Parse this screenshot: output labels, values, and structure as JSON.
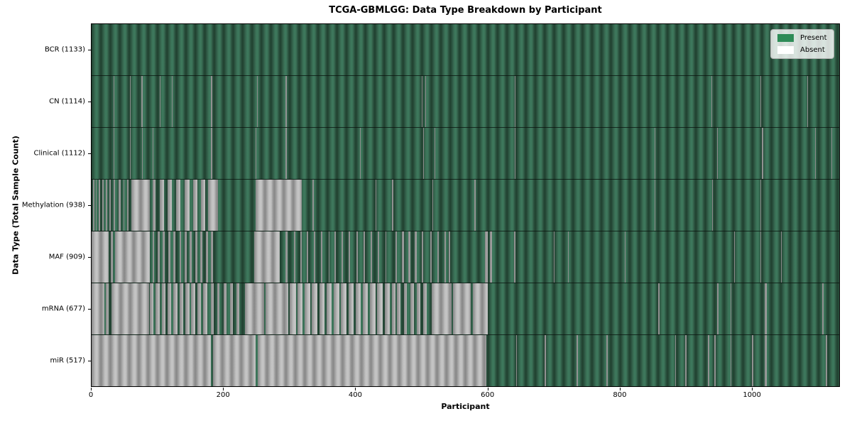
{
  "chart_data": {
    "type": "heatmap",
    "title": "TCGA-GBMLGG: Data Type Breakdown by Participant",
    "xlabel": "Participant",
    "ylabel": "Data Type (Total Sample Count)",
    "n_participants": 1133,
    "xlim": [
      0,
      1133
    ],
    "x_ticks": [
      0,
      200,
      400,
      600,
      800,
      1000
    ],
    "grid": false,
    "legend": {
      "position": "upper right",
      "entries": [
        {
          "label": "Present",
          "color": "#2e8b57"
        },
        {
          "label": "Absent",
          "color": "#ffffff"
        }
      ]
    },
    "rows": [
      {
        "data_type": "BCR",
        "label": "BCR (1133)",
        "present_count": 1133,
        "absent_ranges": []
      },
      {
        "data_type": "CN",
        "label": "CN (1114)",
        "present_count": 1114,
        "absent_ranges": [
          [
            33,
            34
          ],
          [
            58,
            59
          ],
          [
            75,
            77
          ],
          [
            103,
            104
          ],
          [
            122,
            123
          ],
          [
            181,
            183
          ],
          [
            251,
            252
          ],
          [
            294,
            296
          ],
          [
            500,
            501
          ],
          [
            506,
            507
          ],
          [
            516,
            517
          ],
          [
            641,
            642
          ],
          [
            870,
            871
          ],
          [
            939,
            940
          ],
          [
            1014,
            1015
          ],
          [
            1085,
            1086
          ]
        ]
      },
      {
        "data_type": "Clinical",
        "label": "Clinical (1112)",
        "present_count": 1112,
        "absent_ranges": [
          [
            33,
            34
          ],
          [
            58,
            59
          ],
          [
            76,
            77
          ],
          [
            93,
            94
          ],
          [
            181,
            183
          ],
          [
            249,
            250
          ],
          [
            294,
            296
          ],
          [
            407,
            408
          ],
          [
            446,
            447
          ],
          [
            503,
            504
          ],
          [
            520,
            521
          ],
          [
            641,
            642
          ],
          [
            853,
            854
          ],
          [
            870,
            871
          ],
          [
            948,
            949
          ],
          [
            1016,
            1018
          ],
          [
            1096,
            1097
          ],
          [
            1121,
            1122
          ]
        ]
      },
      {
        "data_type": "Methylation",
        "label": "Methylation (938)",
        "present_count": 938,
        "absent_ranges": [
          [
            2,
            4
          ],
          [
            6,
            8
          ],
          [
            11,
            13
          ],
          [
            16,
            18
          ],
          [
            22,
            24
          ],
          [
            27,
            29
          ],
          [
            33,
            36
          ],
          [
            41,
            44
          ],
          [
            48,
            50
          ],
          [
            54,
            56
          ],
          [
            60,
            88
          ],
          [
            92,
            97
          ],
          [
            103,
            110
          ],
          [
            115,
            122
          ],
          [
            128,
            135
          ],
          [
            141,
            148
          ],
          [
            154,
            160
          ],
          [
            166,
            172
          ],
          [
            176,
            192
          ],
          [
            249,
            319
          ],
          [
            335,
            337
          ],
          [
            430,
            432
          ],
          [
            455,
            457
          ],
          [
            516,
            518
          ],
          [
            580,
            582
          ],
          [
            853,
            854
          ],
          [
            940,
            941
          ],
          [
            1014,
            1015
          ]
        ]
      },
      {
        "data_type": "MAF",
        "label": "MAF (909)",
        "present_count": 909,
        "absent_ranges": [
          [
            0,
            26
          ],
          [
            29,
            32
          ],
          [
            35,
            88
          ],
          [
            92,
            95
          ],
          [
            100,
            103
          ],
          [
            108,
            111
          ],
          [
            116,
            119
          ],
          [
            124,
            127
          ],
          [
            133,
            136
          ],
          [
            141,
            144
          ],
          [
            149,
            152
          ],
          [
            157,
            160
          ],
          [
            165,
            168
          ],
          [
            173,
            176
          ],
          [
            181,
            184
          ],
          [
            246,
            285
          ],
          [
            294,
            297
          ],
          [
            307,
            309
          ],
          [
            316,
            318
          ],
          [
            326,
            328
          ],
          [
            337,
            339
          ],
          [
            348,
            350
          ],
          [
            359,
            361
          ],
          [
            368,
            370
          ],
          [
            379,
            381
          ],
          [
            390,
            392
          ],
          [
            401,
            403
          ],
          [
            412,
            414
          ],
          [
            423,
            425
          ],
          [
            434,
            436
          ],
          [
            445,
            447
          ],
          [
            460,
            463
          ],
          [
            470,
            473
          ],
          [
            480,
            483
          ],
          [
            490,
            493
          ],
          [
            500,
            503
          ],
          [
            513,
            515
          ],
          [
            524,
            526
          ],
          [
            535,
            537
          ],
          [
            541,
            543
          ],
          [
            596,
            600
          ],
          [
            604,
            607
          ],
          [
            640,
            642
          ],
          [
            700,
            702
          ],
          [
            722,
            723
          ],
          [
            808,
            809
          ],
          [
            974,
            975
          ],
          [
            1014,
            1015
          ],
          [
            1045,
            1046
          ]
        ]
      },
      {
        "data_type": "mRNA",
        "label": "mRNA (677)",
        "present_count": 677,
        "absent_ranges": [
          [
            0,
            19
          ],
          [
            21,
            26
          ],
          [
            30,
            87
          ],
          [
            88,
            94
          ],
          [
            97,
            103
          ],
          [
            106,
            112
          ],
          [
            115,
            121
          ],
          [
            124,
            130
          ],
          [
            133,
            139
          ],
          [
            142,
            148
          ],
          [
            151,
            157
          ],
          [
            160,
            166
          ],
          [
            169,
            175
          ],
          [
            181,
            185
          ],
          [
            190,
            194
          ],
          [
            200,
            204
          ],
          [
            210,
            214
          ],
          [
            220,
            224
          ],
          [
            232,
            262
          ],
          [
            264,
            298
          ],
          [
            300,
            310
          ],
          [
            312,
            320
          ],
          [
            323,
            331
          ],
          [
            334,
            342
          ],
          [
            345,
            353
          ],
          [
            356,
            364
          ],
          [
            367,
            375
          ],
          [
            378,
            386
          ],
          [
            389,
            397
          ],
          [
            400,
            408
          ],
          [
            411,
            419
          ],
          [
            422,
            430
          ],
          [
            433,
            441
          ],
          [
            444,
            452
          ],
          [
            455,
            460
          ],
          [
            463,
            468
          ],
          [
            473,
            478
          ],
          [
            483,
            488
          ],
          [
            493,
            498
          ],
          [
            503,
            508
          ],
          [
            515,
            545
          ],
          [
            548,
            575
          ],
          [
            578,
            600
          ],
          [
            859,
            861
          ],
          [
            948,
            950
          ],
          [
            968,
            970
          ],
          [
            1020,
            1023
          ],
          [
            1107,
            1109
          ]
        ]
      },
      {
        "data_type": "miR",
        "label": "miR (517)",
        "present_count": 517,
        "absent_ranges": [
          [
            0,
            181
          ],
          [
            184,
            249
          ],
          [
            252,
            598
          ],
          [
            643,
            645
          ],
          [
            687,
            689
          ],
          [
            735,
            737
          ],
          [
            780,
            782
          ],
          [
            884,
            886
          ],
          [
            900,
            902
          ],
          [
            934,
            936
          ],
          [
            944,
            946
          ],
          [
            968,
            970
          ],
          [
            1001,
            1003
          ],
          [
            1020,
            1023
          ],
          [
            1113,
            1115
          ]
        ]
      }
    ]
  }
}
